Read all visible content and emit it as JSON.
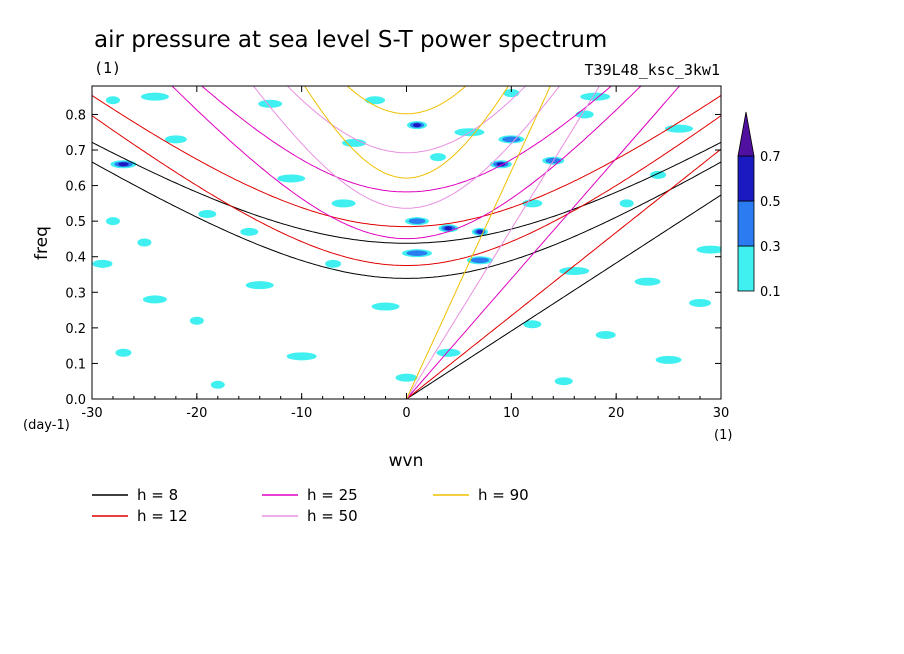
{
  "chart_data": {
    "type": "heatmap",
    "title": "air pressure at sea level S-T power spectrum",
    "subtitle_left": "(1)",
    "subtitle_right": "T39L48_ksc_3kw1",
    "xlabel": "wvn",
    "ylabel": "freq",
    "x_unit_label": "(1)",
    "y_unit_label": "(day-1)",
    "xlim": [
      -30,
      30
    ],
    "ylim": [
      0,
      0.88
    ],
    "x_ticks": [
      -30,
      -20,
      -10,
      0,
      10,
      20,
      30
    ],
    "y_ticks": [
      0.0,
      0.1,
      0.2,
      0.3,
      0.4,
      0.5,
      0.6,
      0.7,
      0.8
    ],
    "x_tick_labels": [
      "-30",
      "-20",
      "-10",
      "0",
      "10",
      "20",
      "30"
    ],
    "y_tick_labels": [
      "0.0",
      "0.1",
      "0.2",
      "0.3",
      "0.4",
      "0.5",
      "0.6",
      "0.7",
      "0.8"
    ],
    "colorbar": {
      "levels": [
        0.1,
        0.3,
        0.5,
        0.7
      ],
      "level_labels": [
        "0.1",
        "0.3",
        "0.5",
        "0.7"
      ],
      "colors": [
        "#40f0f0",
        "#2a7cf0",
        "#1a1ac0",
        "#5010a0"
      ]
    },
    "contour_blobs": [
      {
        "x": -28,
        "y": 0.84,
        "level": 0
      },
      {
        "x": -24,
        "y": 0.85,
        "level": 0
      },
      {
        "x": -13,
        "y": 0.83,
        "level": 0
      },
      {
        "x": -3,
        "y": 0.84,
        "level": 0
      },
      {
        "x": 10,
        "y": 0.86,
        "level": 0
      },
      {
        "x": 18,
        "y": 0.85,
        "level": 0
      },
      {
        "x": -27,
        "y": 0.66,
        "level": 2
      },
      {
        "x": -22,
        "y": 0.73,
        "level": 0
      },
      {
        "x": -19,
        "y": 0.52,
        "level": 0
      },
      {
        "x": -28,
        "y": 0.5,
        "level": 0
      },
      {
        "x": -11,
        "y": 0.62,
        "level": 0
      },
      {
        "x": -5,
        "y": 0.72,
        "level": 0
      },
      {
        "x": 1,
        "y": 0.77,
        "level": 2
      },
      {
        "x": 3,
        "y": 0.68,
        "level": 0
      },
      {
        "x": 6,
        "y": 0.75,
        "level": 0
      },
      {
        "x": 10,
        "y": 0.73,
        "level": 1
      },
      {
        "x": 14,
        "y": 0.67,
        "level": 1
      },
      {
        "x": 17,
        "y": 0.8,
        "level": 0
      },
      {
        "x": 21,
        "y": 0.55,
        "level": 0
      },
      {
        "x": 26,
        "y": 0.76,
        "level": 0
      },
      {
        "x": 1,
        "y": 0.5,
        "level": 1
      },
      {
        "x": 4,
        "y": 0.48,
        "level": 2
      },
      {
        "x": 7,
        "y": 0.47,
        "level": 2
      },
      {
        "x": 1,
        "y": 0.41,
        "level": 1
      },
      {
        "x": 7,
        "y": 0.39,
        "level": 1
      },
      {
        "x": 9,
        "y": 0.66,
        "level": 2
      },
      {
        "x": -15,
        "y": 0.47,
        "level": 0
      },
      {
        "x": -25,
        "y": 0.44,
        "level": 0
      },
      {
        "x": -14,
        "y": 0.32,
        "level": 0
      },
      {
        "x": -24,
        "y": 0.28,
        "level": 0
      },
      {
        "x": -29,
        "y": 0.38,
        "level": 0
      },
      {
        "x": -7,
        "y": 0.38,
        "level": 0
      },
      {
        "x": 16,
        "y": 0.36,
        "level": 0
      },
      {
        "x": 23,
        "y": 0.33,
        "level": 0
      },
      {
        "x": 28,
        "y": 0.27,
        "level": 0
      },
      {
        "x": 12,
        "y": 0.21,
        "level": 0
      },
      {
        "x": -20,
        "y": 0.22,
        "level": 0
      },
      {
        "x": -2,
        "y": 0.26,
        "level": 0
      },
      {
        "x": 4,
        "y": 0.13,
        "level": 0
      },
      {
        "x": 19,
        "y": 0.18,
        "level": 0
      },
      {
        "x": -27,
        "y": 0.13,
        "level": 0
      },
      {
        "x": -10,
        "y": 0.12,
        "level": 0
      },
      {
        "x": 25,
        "y": 0.11,
        "level": 0
      },
      {
        "x": 0,
        "y": 0.06,
        "level": 0
      },
      {
        "x": 15,
        "y": 0.05,
        "level": 0
      },
      {
        "x": -18,
        "y": 0.04,
        "level": 0
      },
      {
        "x": 29,
        "y": 0.42,
        "level": 0
      },
      {
        "x": -6,
        "y": 0.55,
        "level": 0
      },
      {
        "x": 12,
        "y": 0.55,
        "level": 0
      },
      {
        "x": 24,
        "y": 0.63,
        "level": 0
      }
    ],
    "dispersion_curves": [
      {
        "name": "h =  8",
        "h": 8,
        "color": "#000000"
      },
      {
        "name": "h = 12",
        "h": 12,
        "color": "#e00000"
      },
      {
        "name": "h = 25",
        "h": 25,
        "color": "#e000c0"
      },
      {
        "name": "h = 50",
        "h": 50,
        "color": "#e890e0"
      },
      {
        "name": "h = 90",
        "h": 90,
        "color": "#f0c000"
      }
    ],
    "legend_placement": "below"
  }
}
